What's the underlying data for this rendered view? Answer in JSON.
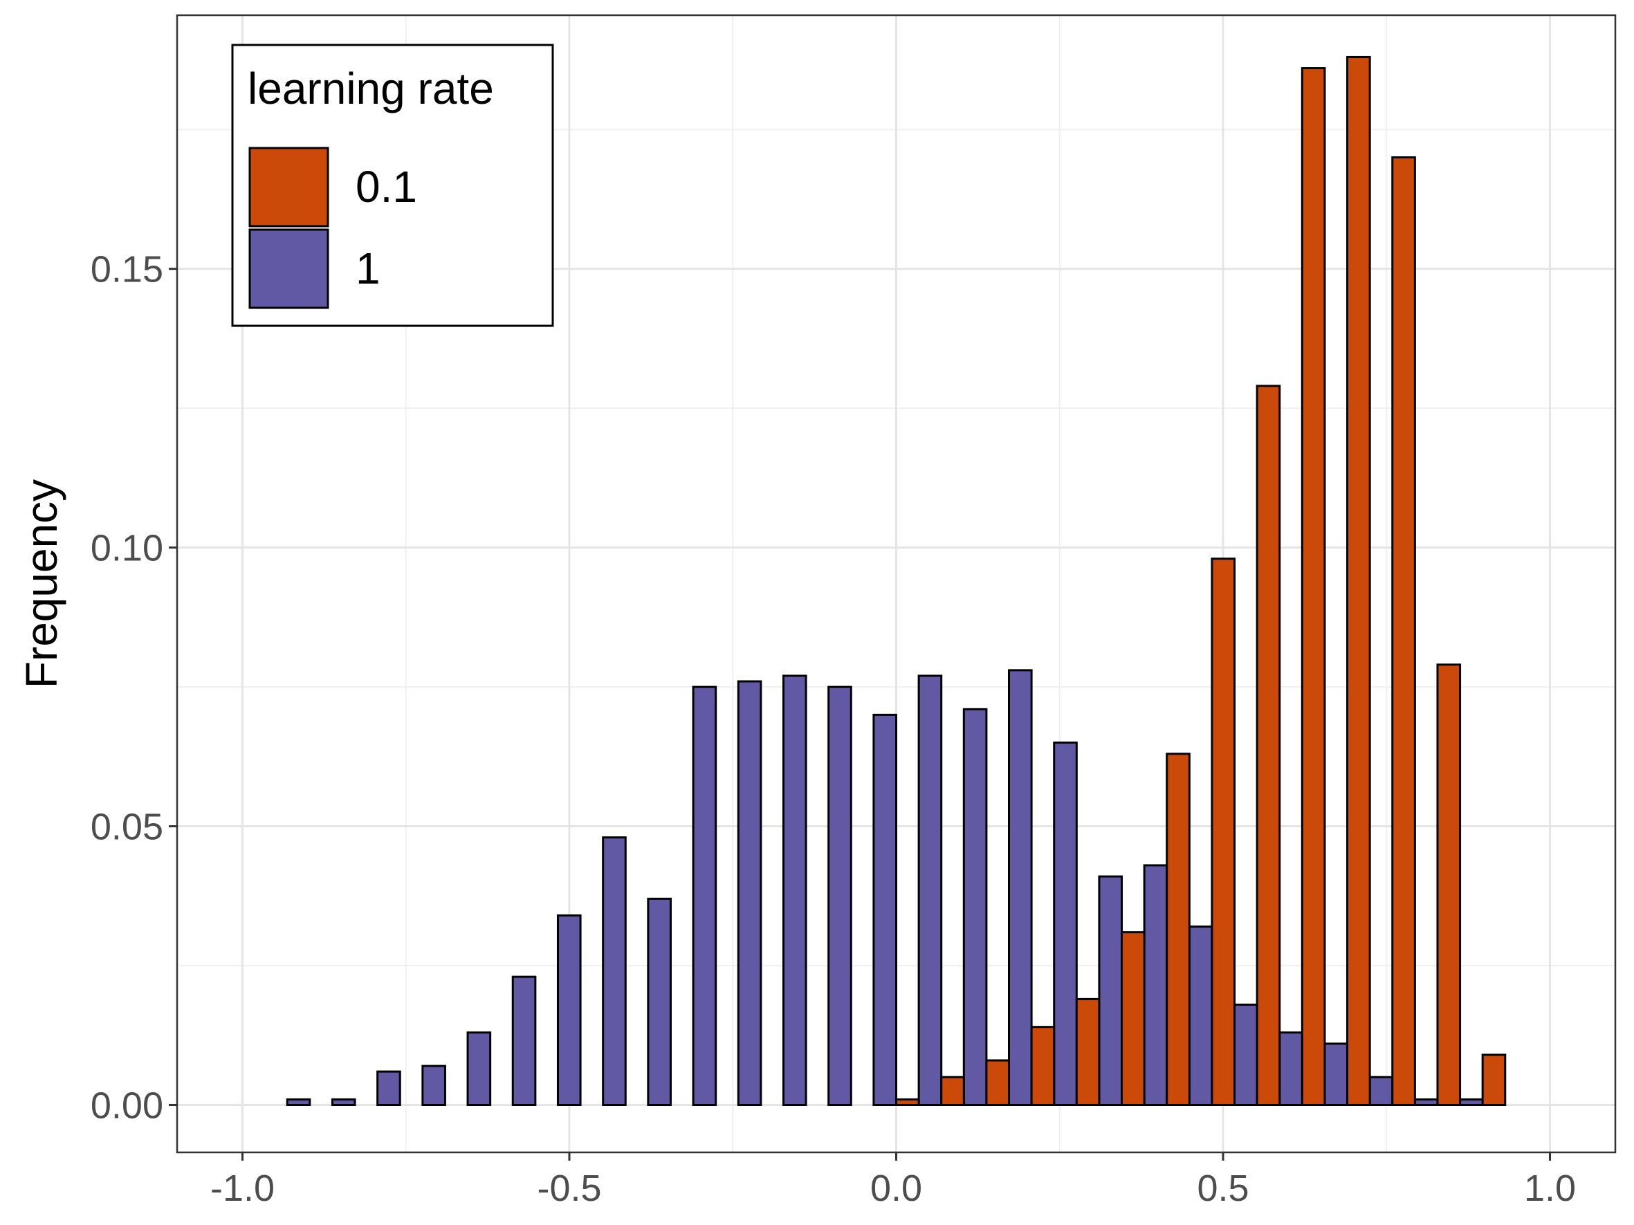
{
  "chart_data": {
    "type": "bar",
    "xlabel": "",
    "ylabel": "Frequency",
    "xlim": [
      -1.1,
      1.1
    ],
    "ylim": [
      -0.0085,
      0.1955
    ],
    "x_ticks": [
      -1.0,
      -0.5,
      0.0,
      0.5,
      1.0
    ],
    "x_tick_labels": [
      "-1.0",
      "-0.5",
      "0.0",
      "0.5",
      "1.0"
    ],
    "y_ticks": [
      0.0,
      0.05,
      0.1,
      0.15
    ],
    "y_tick_labels": [
      "0.00",
      "0.05",
      "0.10",
      "0.15"
    ],
    "grid": true,
    "legend_position": "top-left",
    "legend_title": "learning rate",
    "bin_centers": [
      -0.966,
      -0.897,
      -0.828,
      -0.759,
      -0.69,
      -0.621,
      -0.552,
      -0.483,
      -0.414,
      -0.345,
      -0.276,
      -0.207,
      -0.138,
      -0.069,
      0.0,
      0.069,
      0.138,
      0.207,
      0.276,
      0.345,
      0.414,
      0.483,
      0.552,
      0.621,
      0.69,
      0.759,
      0.828,
      0.897,
      0.966
    ],
    "series": [
      {
        "name": "1",
        "color": "#6159a3",
        "values": [
          0.0,
          0.001,
          0.001,
          0.006,
          0.007,
          0.013,
          0.023,
          0.034,
          0.048,
          0.037,
          0.075,
          0.076,
          0.077,
          0.075,
          0.07,
          0.077,
          0.071,
          0.078,
          0.065,
          0.041,
          0.043,
          0.032,
          0.018,
          0.013,
          0.011,
          0.005,
          0.001,
          0.001,
          0.0
        ]
      },
      {
        "name": "0.1",
        "color": "#cb4a0a",
        "values": [
          0.0,
          0.0,
          0.0,
          0.0,
          0.0,
          0.0,
          0.0,
          0.0,
          0.0,
          0.0,
          0.0,
          0.0,
          0.0,
          0.0,
          0.001,
          0.005,
          0.008,
          0.014,
          0.019,
          0.031,
          0.063,
          0.098,
          0.129,
          0.186,
          0.188,
          0.17,
          0.079,
          0.009,
          0.0
        ]
      }
    ]
  }
}
